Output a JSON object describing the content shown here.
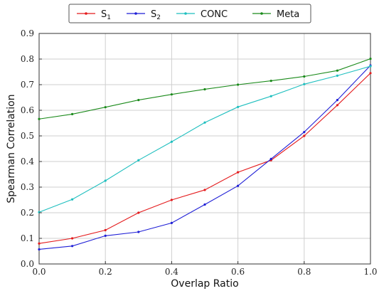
{
  "chart_data": {
    "type": "line",
    "xlabel": "Overlap Ratio",
    "ylabel": "Spearman Correlation",
    "xlim": [
      0,
      1
    ],
    "ylim": [
      0,
      0.9
    ],
    "x_ticks": [
      "0.0",
      "0.2",
      "0.4",
      "0.6",
      "0.8",
      "1.0"
    ],
    "y_ticks": [
      "0.0",
      "0.1",
      "0.2",
      "0.3",
      "0.4",
      "0.5",
      "0.6",
      "0.7",
      "0.8",
      "0.9"
    ],
    "grid": true,
    "legend_position": "top-center, above plot",
    "x": [
      0.0,
      0.1,
      0.2,
      0.3,
      0.4,
      0.5,
      0.6,
      0.7,
      0.8,
      0.9,
      1.0
    ],
    "series": [
      {
        "name": "S1",
        "label_base": "S",
        "label_sub": "1",
        "color": "#e41a1c",
        "values": [
          0.08,
          0.1,
          0.132,
          0.2,
          0.25,
          0.289,
          0.358,
          0.405,
          0.5,
          0.62,
          0.745
        ]
      },
      {
        "name": "S2",
        "label_base": "S",
        "label_sub": "2",
        "color": "#1f1fd6",
        "values": [
          0.057,
          0.07,
          0.11,
          0.125,
          0.16,
          0.232,
          0.305,
          0.41,
          0.515,
          0.64,
          0.775
        ]
      },
      {
        "name": "CONC",
        "label_base": "CONC",
        "label_sub": "",
        "color": "#1fbfbf",
        "values": [
          0.202,
          0.252,
          0.325,
          0.405,
          0.477,
          0.552,
          0.613,
          0.655,
          0.702,
          0.735,
          0.772
        ]
      },
      {
        "name": "Meta",
        "label_base": "Meta",
        "label_sub": "",
        "color": "#1a8a1a",
        "values": [
          0.566,
          0.585,
          0.612,
          0.64,
          0.662,
          0.682,
          0.7,
          0.715,
          0.732,
          0.755,
          0.801
        ]
      }
    ]
  }
}
